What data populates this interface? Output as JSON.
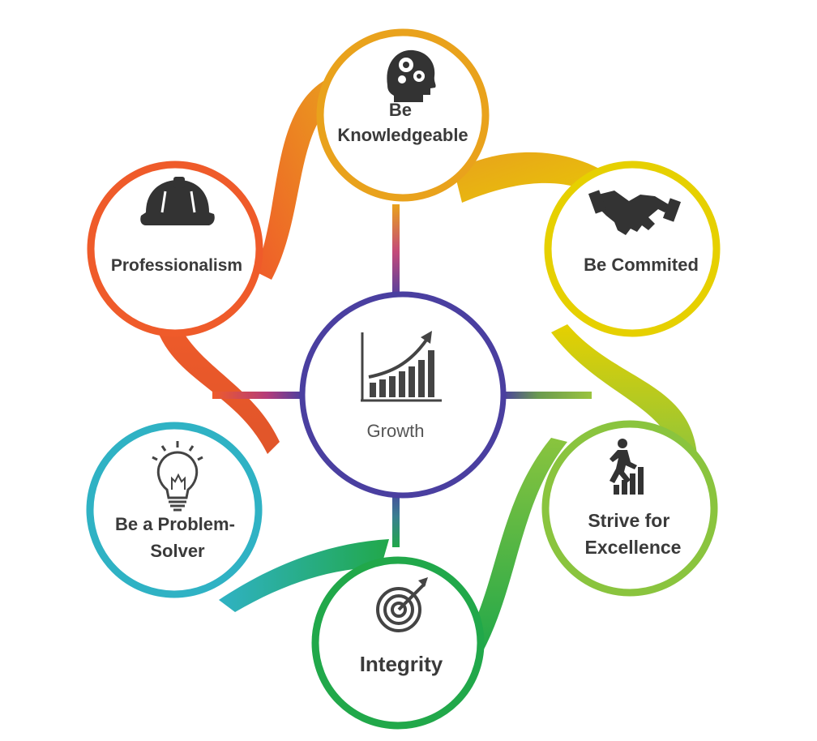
{
  "center": {
    "label": "Growth",
    "icon": "growth-chart-icon",
    "color": "#4a3fa0"
  },
  "nodes": [
    {
      "id": "knowledgeable",
      "lines": [
        "Be",
        "Knowledgeable"
      ],
      "icon": "head-gears-icon",
      "color": "#e9a21c"
    },
    {
      "id": "commited",
      "lines": [
        "Be Commited"
      ],
      "icon": "handshake-icon",
      "color": "#e6d000"
    },
    {
      "id": "excellence",
      "lines": [
        "Strive for",
        "Excellence"
      ],
      "icon": "runner-stairs-icon",
      "color": "#8ac43e"
    },
    {
      "id": "integrity",
      "lines": [
        "Integrity"
      ],
      "icon": "target-icon",
      "color": "#21a84a"
    },
    {
      "id": "problem-solver",
      "lines": [
        "Be a Problem-",
        "Solver"
      ],
      "icon": "lightbulb-icon",
      "color": "#2fb2c4"
    },
    {
      "id": "professionalism",
      "lines": [
        "Professionalism"
      ],
      "icon": "hard-hat-icon",
      "color": "#ef5b2a"
    }
  ]
}
